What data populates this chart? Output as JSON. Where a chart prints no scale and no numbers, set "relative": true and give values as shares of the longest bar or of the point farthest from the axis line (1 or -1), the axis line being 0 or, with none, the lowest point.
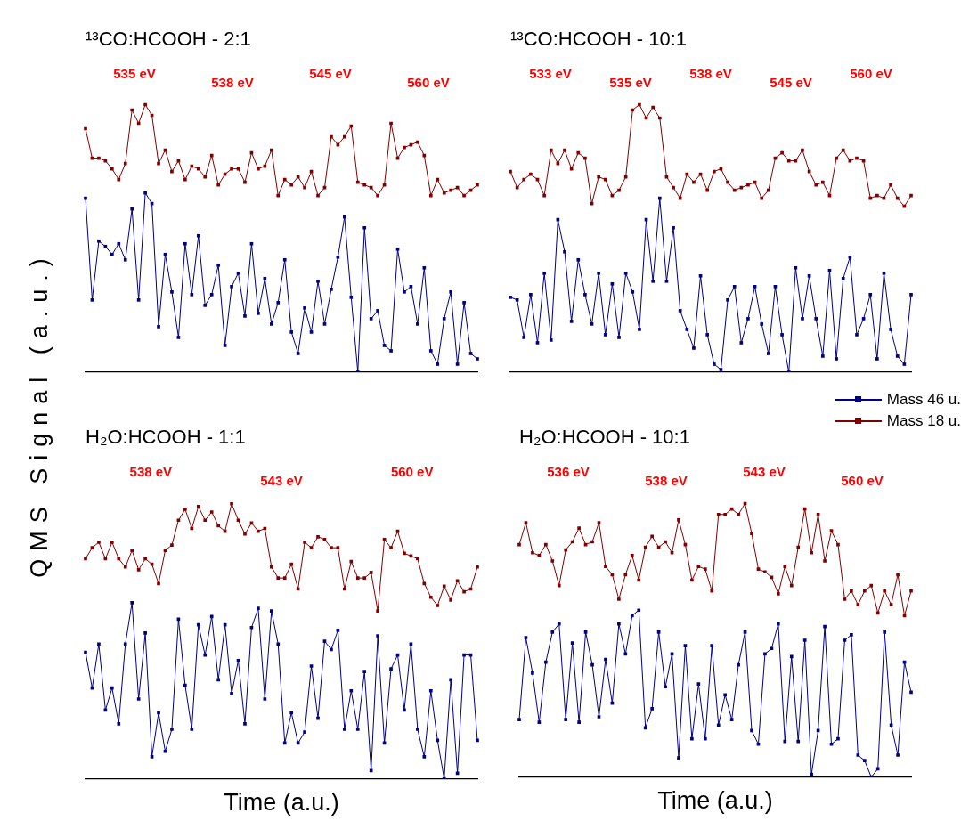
{
  "chart_data": [
    {
      "type": "line",
      "title": "¹³CO:HCOOH - 2:1",
      "ylabel": "QMS Signal (a.u.)",
      "relative": true,
      "marker": "square",
      "line_style": "solid",
      "tick_labels": false,
      "annotations": [
        "535 eV",
        "538 eV",
        "545 eV",
        "560 eV"
      ],
      "categories": [
        null,
        null,
        null,
        null,
        null,
        null,
        null,
        null,
        null,
        null,
        null,
        null,
        null,
        null,
        null,
        null,
        null,
        null,
        null,
        null,
        null,
        null,
        null,
        null,
        null,
        null,
        null,
        null,
        null,
        null,
        null,
        null,
        null,
        null,
        null,
        null,
        null,
        null,
        null,
        null,
        null,
        null,
        null,
        null,
        null,
        null,
        null,
        null,
        null,
        null,
        null,
        null,
        null,
        null,
        null,
        null,
        null,
        null,
        null,
        null
      ],
      "series": [
        {
          "color": "#000080",
          "values": [
            0.65,
            0.27,
            0.49,
            0.47,
            0.44,
            0.48,
            0.42,
            0.61,
            0.27,
            0.67,
            0.63,
            0.17,
            0.44,
            0.3,
            0.13,
            0.48,
            0.29,
            0.51,
            0.25,
            0.29,
            0.4,
            0.1,
            0.32,
            0.37,
            0.21,
            0.48,
            0.22,
            0.35,
            0.18,
            0.26,
            0.42,
            0.15,
            0.07,
            0.24,
            0.15,
            0.34,
            0.18,
            0.31,
            0.43,
            0.58,
            0.28,
            0.0,
            0.54,
            0.2,
            0.23,
            0.1,
            0.08,
            0.46,
            0.3,
            0.32,
            0.18,
            0.39,
            0.08,
            0.03,
            0.2,
            0.3,
            0.03,
            0.26,
            0.07,
            0.05
          ]
        },
        {
          "color": "#800000",
          "values": [
            0.91,
            0.8,
            0.8,
            0.79,
            0.76,
            0.72,
            0.78,
            0.98,
            0.93,
            1.0,
            0.96,
            0.78,
            0.83,
            0.75,
            0.79,
            0.72,
            0.77,
            0.76,
            0.73,
            0.81,
            0.7,
            0.74,
            0.76,
            0.76,
            0.71,
            0.82,
            0.76,
            0.77,
            0.83,
            0.66,
            0.72,
            0.7,
            0.73,
            0.69,
            0.75,
            0.66,
            0.69,
            0.88,
            0.85,
            0.88,
            0.92,
            0.71,
            0.7,
            0.69,
            0.66,
            0.7,
            0.93,
            0.8,
            0.84,
            0.85,
            0.86,
            0.81,
            0.66,
            0.72,
            0.67,
            0.68,
            0.69,
            0.66,
            0.68,
            0.7
          ]
        }
      ]
    },
    {
      "type": "line",
      "title": "¹³CO:HCOOH - 10:1",
      "relative": true,
      "marker": "square",
      "line_style": "solid",
      "tick_labels": false,
      "annotations": [
        "533 eV",
        "535 eV",
        "538 eV",
        "545 eV",
        "560 eV"
      ],
      "categories": [
        null,
        null,
        null,
        null,
        null,
        null,
        null,
        null,
        null,
        null,
        null,
        null,
        null,
        null,
        null,
        null,
        null,
        null,
        null,
        null,
        null,
        null,
        null,
        null,
        null,
        null,
        null,
        null,
        null,
        null,
        null,
        null,
        null,
        null,
        null,
        null,
        null,
        null,
        null,
        null,
        null,
        null,
        null,
        null,
        null,
        null,
        null,
        null,
        null,
        null,
        null,
        null,
        null,
        null,
        null,
        null,
        null,
        null,
        null,
        null
      ],
      "series": [
        {
          "color": "#000080",
          "values": [
            0.28,
            0.27,
            0.13,
            0.29,
            0.11,
            0.37,
            0.12,
            0.57,
            0.45,
            0.19,
            0.42,
            0.29,
            0.18,
            0.37,
            0.14,
            0.33,
            0.13,
            0.37,
            0.3,
            0.16,
            0.57,
            0.34,
            0.65,
            0.34,
            0.54,
            0.23,
            0.16,
            0.09,
            0.36,
            0.14,
            0.03,
            0.01,
            0.27,
            0.32,
            0.11,
            0.2,
            0.32,
            0.18,
            0.07,
            0.32,
            0.14,
            0.0,
            0.39,
            0.2,
            0.36,
            0.2,
            0.06,
            0.38,
            0.05,
            0.35,
            0.43,
            0.14,
            0.2,
            0.29,
            0.05,
            0.37,
            0.16,
            0.06,
            0.03,
            0.29
          ]
        },
        {
          "color": "#800000",
          "values": [
            0.75,
            0.69,
            0.72,
            0.74,
            0.72,
            0.66,
            0.83,
            0.78,
            0.83,
            0.76,
            0.82,
            0.8,
            0.63,
            0.73,
            0.72,
            0.66,
            0.68,
            0.73,
            0.98,
            1.0,
            0.95,
            0.99,
            0.95,
            0.73,
            0.69,
            0.65,
            0.74,
            0.71,
            0.74,
            0.68,
            0.75,
            0.76,
            0.71,
            0.68,
            0.69,
            0.7,
            0.71,
            0.65,
            0.68,
            0.8,
            0.82,
            0.79,
            0.79,
            0.83,
            0.75,
            0.7,
            0.71,
            0.66,
            0.8,
            0.83,
            0.79,
            0.8,
            0.79,
            0.65,
            0.66,
            0.65,
            0.7,
            0.65,
            0.62,
            0.66
          ]
        }
      ]
    },
    {
      "type": "line",
      "title": "H₂O:HCOOH - 1:1",
      "xlabel": "Time (a.u.)",
      "relative": true,
      "marker": "square",
      "line_style": "solid",
      "tick_labels": false,
      "annotations": [
        "538 eV",
        "543 eV",
        "560 eV"
      ],
      "categories": [
        null,
        null,
        null,
        null,
        null,
        null,
        null,
        null,
        null,
        null,
        null,
        null,
        null,
        null,
        null,
        null,
        null,
        null,
        null,
        null,
        null,
        null,
        null,
        null,
        null,
        null,
        null,
        null,
        null,
        null,
        null,
        null,
        null,
        null,
        null,
        null,
        null,
        null,
        null,
        null,
        null,
        null,
        null,
        null,
        null,
        null,
        null,
        null,
        null,
        null,
        null,
        null,
        null,
        null,
        null,
        null,
        null,
        null,
        null,
        null
      ],
      "series": [
        {
          "color": "#000080",
          "values": [
            0.46,
            0.33,
            0.49,
            0.25,
            0.33,
            0.2,
            0.49,
            0.64,
            0.29,
            0.53,
            0.08,
            0.24,
            0.1,
            0.18,
            0.58,
            0.34,
            0.18,
            0.56,
            0.45,
            0.59,
            0.36,
            0.56,
            0.31,
            0.43,
            0.2,
            0.55,
            0.62,
            0.29,
            0.61,
            0.49,
            0.13,
            0.24,
            0.13,
            0.17,
            0.41,
            0.22,
            0.5,
            0.47,
            0.54,
            0.18,
            0.32,
            0.18,
            0.39,
            0.03,
            0.52,
            0.13,
            0.4,
            0.45,
            0.25,
            0.49,
            0.18,
            0.08,
            0.32,
            0.14,
            0.0,
            0.36,
            0.02,
            0.45,
            0.45,
            0.14
          ]
        },
        {
          "color": "#800000",
          "values": [
            0.8,
            0.84,
            0.86,
            0.8,
            0.86,
            0.8,
            0.77,
            0.83,
            0.76,
            0.8,
            0.78,
            0.71,
            0.83,
            0.85,
            0.94,
            0.98,
            0.91,
            0.99,
            0.94,
            0.97,
            0.92,
            0.9,
            1.0,
            0.94,
            0.89,
            0.93,
            0.9,
            0.91,
            0.77,
            0.73,
            0.73,
            0.78,
            0.69,
            0.86,
            0.84,
            0.88,
            0.87,
            0.84,
            0.84,
            0.69,
            0.79,
            0.73,
            0.73,
            0.75,
            0.61,
            0.87,
            0.84,
            0.9,
            0.82,
            0.81,
            0.8,
            0.71,
            0.66,
            0.63,
            0.7,
            0.65,
            0.72,
            0.68,
            0.69,
            0.77
          ]
        }
      ]
    },
    {
      "type": "line",
      "title": "H₂O:HCOOH - 10:1",
      "xlabel": "Time (a.u.)",
      "relative": true,
      "marker": "square",
      "line_style": "solid",
      "tick_labels": false,
      "legend": "top right",
      "annotations": [
        "536 eV",
        "538 eV",
        "543 eV",
        "560 eV"
      ],
      "categories": [
        null,
        null,
        null,
        null,
        null,
        null,
        null,
        null,
        null,
        null,
        null,
        null,
        null,
        null,
        null,
        null,
        null,
        null,
        null,
        null,
        null,
        null,
        null,
        null,
        null,
        null,
        null,
        null,
        null,
        null,
        null,
        null,
        null,
        null,
        null,
        null,
        null,
        null,
        null,
        null,
        null,
        null,
        null,
        null,
        null,
        null,
        null,
        null,
        null,
        null,
        null,
        null,
        null,
        null,
        null,
        null,
        null,
        null,
        null,
        null
      ],
      "series": [
        {
          "name": "Mass 46 u.",
          "color": "#000080",
          "values": [
            0.21,
            0.51,
            0.38,
            0.2,
            0.42,
            0.53,
            0.56,
            0.21,
            0.49,
            0.2,
            0.53,
            0.41,
            0.22,
            0.43,
            0.27,
            0.56,
            0.45,
            0.59,
            0.61,
            0.18,
            0.25,
            0.53,
            0.33,
            0.45,
            0.07,
            0.48,
            0.14,
            0.34,
            0.14,
            0.48,
            0.19,
            0.3,
            0.21,
            0.41,
            0.53,
            0.17,
            0.12,
            0.45,
            0.47,
            0.56,
            0.13,
            0.44,
            0.13,
            0.5,
            0.01,
            0.17,
            0.55,
            0.12,
            0.14,
            0.5,
            0.52,
            0.08,
            0.06,
            0.0,
            0.03,
            0.53,
            0.19,
            0.08,
            0.42,
            0.31
          ]
        },
        {
          "name": "Mass 18 u.",
          "color": "#800000",
          "values": [
            0.85,
            0.93,
            0.82,
            0.81,
            0.85,
            0.79,
            0.7,
            0.83,
            0.86,
            0.91,
            0.85,
            0.86,
            0.93,
            0.77,
            0.74,
            0.65,
            0.74,
            0.81,
            0.72,
            0.84,
            0.88,
            0.84,
            0.86,
            0.82,
            0.94,
            0.85,
            0.72,
            0.77,
            0.76,
            0.68,
            0.96,
            0.96,
            0.98,
            0.96,
            1.0,
            0.89,
            0.76,
            0.75,
            0.73,
            0.67,
            0.77,
            0.7,
            0.84,
            0.98,
            0.82,
            0.96,
            0.79,
            0.9,
            0.85,
            0.65,
            0.68,
            0.63,
            0.68,
            0.7,
            0.6,
            0.68,
            0.63,
            0.74,
            0.59,
            0.68
          ]
        }
      ]
    }
  ]
}
